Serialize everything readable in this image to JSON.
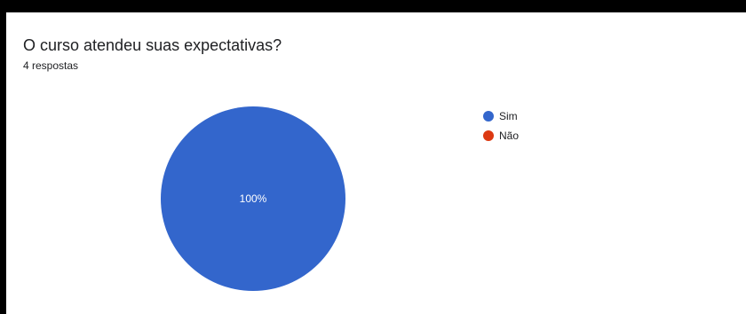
{
  "question": {
    "title": "O curso atendeu suas expectativas?",
    "responses": "4 respostas"
  },
  "colors": {
    "sim": "#3366cc",
    "nao": "#dc3912",
    "label": "#ffffff"
  },
  "chart_data": {
    "type": "pie",
    "title": "",
    "categories": [
      "Sim",
      "Não"
    ],
    "values": [
      4,
      0
    ],
    "percent_labels": [
      "100%",
      ""
    ],
    "legend_position": "right",
    "series": [
      {
        "name": "Sim",
        "value": 4,
        "color": "#3366cc"
      },
      {
        "name": "Não",
        "value": 0,
        "color": "#dc3912"
      }
    ]
  }
}
